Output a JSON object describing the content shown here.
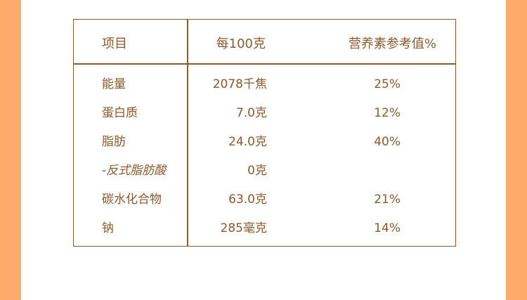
{
  "table": {
    "headers": [
      "项目",
      "每100克",
      "营养素参考值%"
    ],
    "rows": [
      {
        "item": "能量",
        "per100g": "2078千焦",
        "nrv": "25%",
        "italic": false
      },
      {
        "item": "蛋白质",
        "per100g": "7.0克",
        "nrv": "12%",
        "italic": false
      },
      {
        "item": "脂肪",
        "per100g": "24.0克",
        "nrv": "40%",
        "italic": false
      },
      {
        "item": "-反式脂肪酸",
        "per100g": "0克",
        "nrv": "",
        "italic": true
      },
      {
        "item": "碳水化合物",
        "per100g": "63.0克",
        "nrv": "21%",
        "italic": false
      },
      {
        "item": "钠",
        "per100g": "285毫克",
        "nrv": "14%",
        "italic": false
      }
    ]
  },
  "colors": {
    "side_accent": "#fdaa6a",
    "text_brown": "#8a5a2e"
  }
}
